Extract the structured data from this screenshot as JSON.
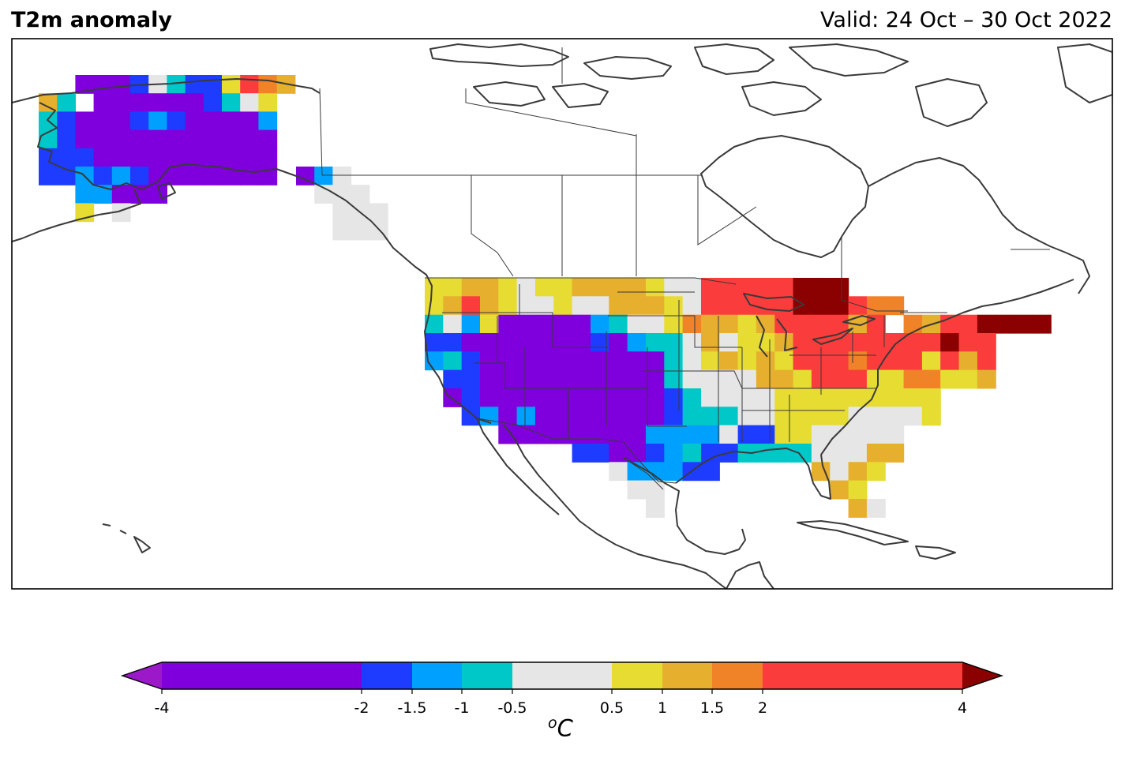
{
  "header": {
    "title": "T2m anomaly",
    "valid": "Valid: 24 Oct – 30 Oct 2022"
  },
  "colorbar": {
    "unit_sup": "o",
    "unit_main": "C",
    "ticks": [
      "-4",
      "-2",
      "-1.5",
      "-1",
      "-0.5",
      "0.5",
      "1",
      "1.5",
      "2",
      "4"
    ],
    "under_color": "#9b19c9",
    "over_color": "#8b0000",
    "bins": [
      {
        "from": -4,
        "to": -2,
        "color": "#7f00dc"
      },
      {
        "from": -2,
        "to": -1.5,
        "color": "#1e3cff"
      },
      {
        "from": -1.5,
        "to": -1,
        "color": "#00a0ff"
      },
      {
        "from": -1,
        "to": -0.5,
        "color": "#00c8c8"
      },
      {
        "from": -0.5,
        "to": 0.5,
        "color": "#e6e6e6"
      },
      {
        "from": 0.5,
        "to": 1,
        "color": "#e6dc32"
      },
      {
        "from": 1,
        "to": 1.5,
        "color": "#e6af2d"
      },
      {
        "from": 1.5,
        "to": 2,
        "color": "#f08228"
      },
      {
        "from": 2,
        "to": 4,
        "color": "#fa3c3c"
      }
    ]
  },
  "map_colors": {
    "P": "#7f00dc",
    "B": "#1e3cff",
    "L": "#00a0ff",
    "T": "#00c8c8",
    "G": "#e6e6e6",
    "Y": "#e6dc32",
    "O": "#e6af2d",
    "R": "#f08228",
    "E": "#fa3c3c",
    "D": "#8b0000",
    "coastline": "#3a3a3a"
  }
}
